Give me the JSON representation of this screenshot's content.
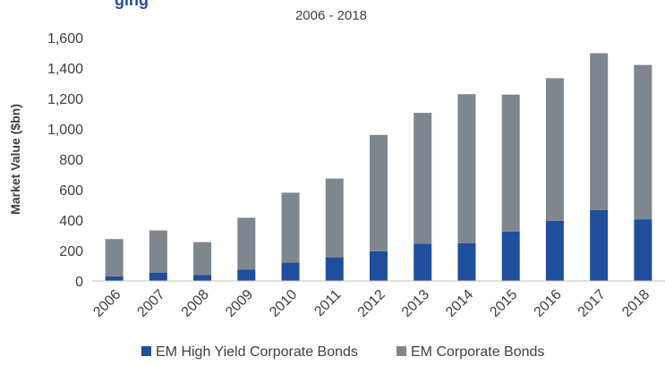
{
  "chart_data": {
    "type": "bar",
    "stacked": true,
    "title": "",
    "subtitle": "2006 - 2018",
    "xlabel": "",
    "ylabel": "Market Value ($bn)",
    "ylim": [
      0,
      1600
    ],
    "yticks": [
      "0",
      "200",
      "400",
      "600",
      "800",
      "1,000",
      "1,200",
      "1,400",
      "1,600"
    ],
    "grid": false,
    "legend": "bottom",
    "categories": [
      "2006",
      "2007",
      "2008",
      "2009",
      "2010",
      "2011",
      "2012",
      "2013",
      "2014",
      "2015",
      "2016",
      "2017",
      "2018"
    ],
    "series": [
      {
        "name": "EM High Yield Corporate Bonds",
        "color": "#1f4e9c",
        "values": [
          30,
          55,
          40,
          75,
          120,
          155,
          195,
          245,
          248,
          325,
          395,
          465,
          405
        ]
      },
      {
        "name": "EM Corporate Bonds",
        "color": "#7f868d",
        "values": [
          245,
          277,
          215,
          340,
          460,
          518,
          765,
          860,
          980,
          900,
          938,
          1032,
          1015
        ]
      }
    ]
  }
}
